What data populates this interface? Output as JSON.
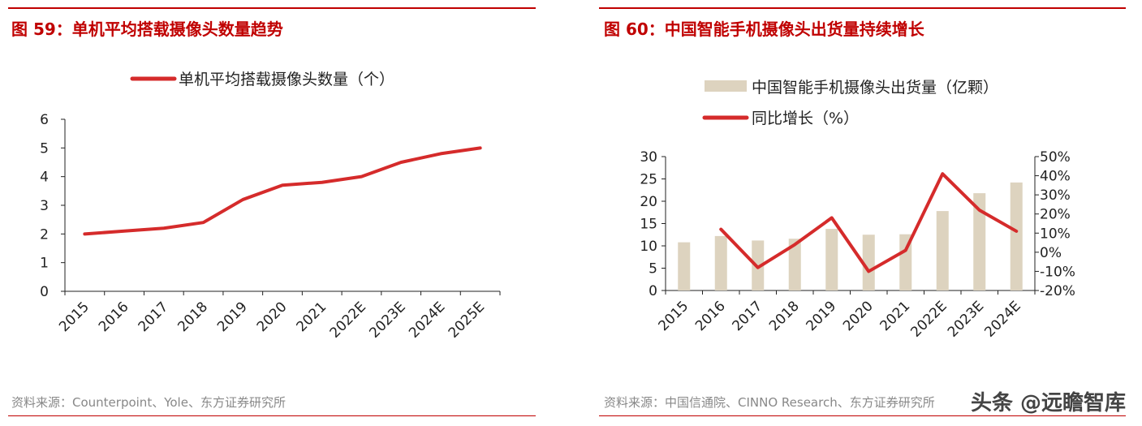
{
  "left": {
    "title": "图 59：单机平均搭载摄像头数量趋势",
    "source": "资料来源：Counterpoint、Yole、东方证券研究所"
  },
  "right": {
    "title": "图 60：中国智能手机摄像头出货量持续增长",
    "source": "资料来源：中国信通院、CINNO Research、东方证券研究所"
  },
  "watermark": "头条 @远瞻智库",
  "chart_data": [
    {
      "type": "line",
      "categories": [
        "2015",
        "2016",
        "2017",
        "2018",
        "2019",
        "2020",
        "2021",
        "2022E",
        "2023E",
        "2024E",
        "2025E"
      ],
      "series": [
        {
          "name": "单机平均搭载摄像头数量（个）",
          "values": [
            2.0,
            2.1,
            2.2,
            2.4,
            3.2,
            3.7,
            3.8,
            4.0,
            4.5,
            4.8,
            5.0
          ],
          "color": "#d52b2b"
        }
      ],
      "ylim": [
        0,
        6
      ],
      "yticks": [
        "0",
        "1",
        "2",
        "3",
        "4",
        "5",
        "6"
      ],
      "legend": "top"
    },
    {
      "type": "bar",
      "categories": [
        "2015",
        "2016",
        "2017",
        "2018",
        "2019",
        "2020",
        "2021",
        "2022E",
        "2023E",
        "2024E"
      ],
      "series": [
        {
          "name": "中国智能手机摄像头出货量（亿颗）",
          "type": "bar",
          "axis": "left",
          "values": [
            10.8,
            12.2,
            11.2,
            11.6,
            13.8,
            12.5,
            12.6,
            17.8,
            21.8,
            24.2
          ],
          "color": "#ddd3bf"
        },
        {
          "name": "同比增长（%）",
          "type": "line",
          "axis": "right",
          "values": [
            null,
            12,
            -8,
            4,
            18,
            -10,
            1,
            41,
            22,
            11
          ],
          "color": "#d52b2b"
        }
      ],
      "ylim": [
        0,
        30
      ],
      "yticks": [
        "0",
        "5",
        "10",
        "15",
        "20",
        "25",
        "30"
      ],
      "y2lim": [
        -20,
        50
      ],
      "y2ticks": [
        "-20%",
        "-10%",
        "0%",
        "10%",
        "20%",
        "30%",
        "40%",
        "50%"
      ],
      "legend": "top"
    }
  ]
}
